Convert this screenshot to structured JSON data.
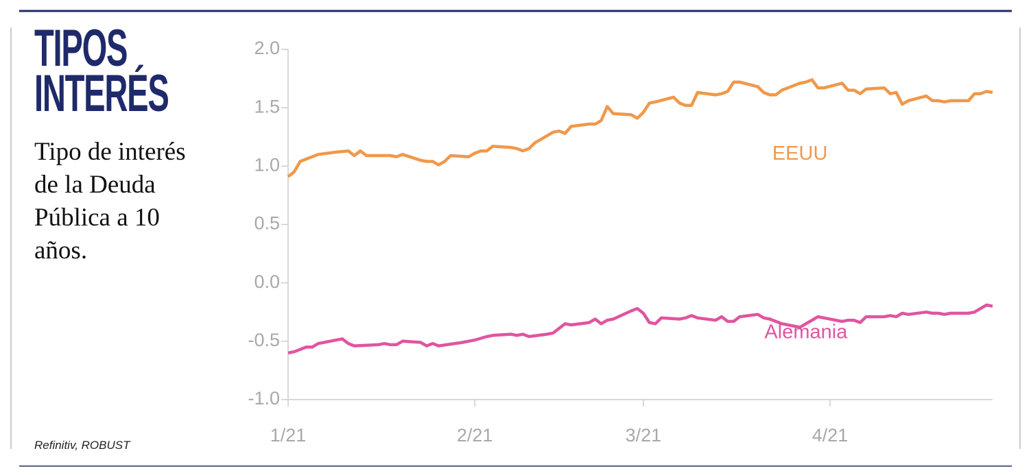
{
  "chart_data": {
    "type": "line",
    "title": [
      "TIPOS",
      "INTERÉS"
    ],
    "subtitle": "Tipo de interés de la Deuda Pública a 10 años.",
    "source": "Refinitiv, ROBUST",
    "xlim": [
      0,
      117
    ],
    "xticks": [
      {
        "value": 0,
        "label": "1/21"
      },
      {
        "value": 31,
        "label": "2/21"
      },
      {
        "value": 59,
        "label": "3/21"
      },
      {
        "value": 90,
        "label": "4/21"
      }
    ],
    "ylim": [
      -1.0,
      2.0
    ],
    "yticks": [
      {
        "value": -1.0,
        "label": "-1.0"
      },
      {
        "value": -0.5,
        "label": "-0.5"
      },
      {
        "value": 0,
        "label": "0.0"
      },
      {
        "value": 0.5,
        "label": "0.5"
      },
      {
        "value": 1.0,
        "label": "1.0"
      },
      {
        "value": 1.5,
        "label": "1.5"
      },
      {
        "value": 2.0,
        "label": "2.0"
      }
    ],
    "series": [
      {
        "name": "EEUU",
        "color": "#f0984a",
        "x": [
          0,
          1,
          2,
          4,
          5,
          8,
          10,
          11,
          12,
          13,
          17,
          18,
          19,
          22,
          23,
          24,
          25,
          26,
          27,
          30,
          31,
          32,
          33,
          34,
          37,
          38,
          39,
          40,
          41,
          44,
          45,
          46,
          47,
          50,
          51,
          52,
          53,
          54,
          57,
          58,
          59,
          60,
          61,
          64,
          65,
          66,
          67,
          68,
          71,
          72,
          73,
          74,
          75,
          78,
          79,
          80,
          81,
          82,
          85,
          86,
          87,
          88,
          89,
          92,
          93,
          94,
          95,
          96,
          99,
          100,
          101,
          102,
          103,
          106,
          107,
          108,
          109,
          110,
          113,
          114,
          115,
          116,
          117
        ],
        "values": [
          0.91,
          0.95,
          1.04,
          1.08,
          1.1,
          1.12,
          1.13,
          1.09,
          1.13,
          1.09,
          1.09,
          1.08,
          1.1,
          1.05,
          1.04,
          1.04,
          1.01,
          1.04,
          1.09,
          1.08,
          1.11,
          1.13,
          1.13,
          1.17,
          1.16,
          1.15,
          1.13,
          1.15,
          1.2,
          1.29,
          1.3,
          1.28,
          1.34,
          1.36,
          1.36,
          1.39,
          1.51,
          1.45,
          1.44,
          1.41,
          1.46,
          1.54,
          1.55,
          1.59,
          1.54,
          1.52,
          1.52,
          1.63,
          1.61,
          1.62,
          1.64,
          1.72,
          1.72,
          1.68,
          1.63,
          1.61,
          1.61,
          1.65,
          1.71,
          1.72,
          1.74,
          1.67,
          1.67,
          1.71,
          1.65,
          1.65,
          1.62,
          1.66,
          1.67,
          1.62,
          1.63,
          1.53,
          1.56,
          1.6,
          1.56,
          1.56,
          1.55,
          1.56,
          1.56,
          1.62,
          1.62,
          1.64,
          1.63
        ],
        "label_at": [
          85,
          1.1
        ]
      },
      {
        "name": "Alemania",
        "color": "#e0559f",
        "x": [
          0,
          1,
          2,
          3,
          4,
          5,
          8,
          9,
          10,
          11,
          15,
          16,
          17,
          18,
          19,
          22,
          23,
          24,
          25,
          29,
          30,
          31,
          33,
          34,
          37,
          38,
          39,
          40,
          43,
          44,
          45,
          46,
          47,
          50,
          51,
          52,
          53,
          54,
          57,
          58,
          59,
          60,
          61,
          62,
          65,
          66,
          67,
          68,
          71,
          72,
          73,
          74,
          75,
          78,
          79,
          80,
          81,
          82,
          85,
          86,
          87,
          88,
          89,
          92,
          93,
          94,
          95,
          96,
          99,
          100,
          101,
          102,
          103,
          106,
          107,
          108,
          109,
          110,
          113,
          114,
          115,
          116,
          117
        ],
        "values": [
          -0.6,
          -0.59,
          -0.57,
          -0.55,
          -0.55,
          -0.52,
          -0.49,
          -0.48,
          -0.52,
          -0.54,
          -0.53,
          -0.52,
          -0.53,
          -0.53,
          -0.5,
          -0.51,
          -0.54,
          -0.52,
          -0.54,
          -0.51,
          -0.5,
          -0.49,
          -0.46,
          -0.45,
          -0.44,
          -0.45,
          -0.44,
          -0.46,
          -0.44,
          -0.43,
          -0.39,
          -0.35,
          -0.36,
          -0.34,
          -0.31,
          -0.35,
          -0.32,
          -0.31,
          -0.24,
          -0.22,
          -0.26,
          -0.34,
          -0.35,
          -0.3,
          -0.31,
          -0.3,
          -0.28,
          -0.3,
          -0.32,
          -0.29,
          -0.33,
          -0.33,
          -0.29,
          -0.27,
          -0.3,
          -0.31,
          -0.33,
          -0.35,
          -0.38,
          -0.35,
          -0.32,
          -0.29,
          -0.3,
          -0.33,
          -0.32,
          -0.32,
          -0.34,
          -0.29,
          -0.29,
          -0.28,
          -0.29,
          -0.26,
          -0.27,
          -0.25,
          -0.26,
          -0.26,
          -0.27,
          -0.26,
          -0.26,
          -0.25,
          -0.22,
          -0.19,
          -0.2
        ],
        "label_at": [
          86,
          -0.43
        ]
      }
    ]
  }
}
